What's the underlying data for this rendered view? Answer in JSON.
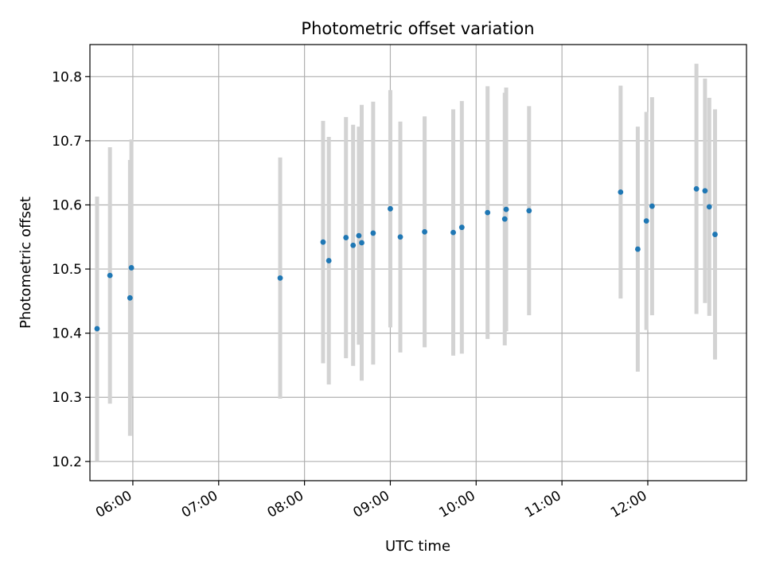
{
  "chart_data": {
    "type": "scatter",
    "title": "Photometric offset variation",
    "xlabel": "UTC time",
    "ylabel": "Photometric offset",
    "xlim": [
      "05:30",
      "13:09"
    ],
    "ylim": [
      10.17,
      10.85
    ],
    "x_ticks": [
      "06:00",
      "07:00",
      "08:00",
      "09:00",
      "10:00",
      "11:00",
      "12:00"
    ],
    "y_ticks": [
      "10.2",
      "10.3",
      "10.4",
      "10.5",
      "10.6",
      "10.7",
      "10.8"
    ],
    "grid": true,
    "colors": {
      "points": "#1f77b4",
      "error_bars": "#d3d3d3",
      "grid": "#b0b0b0"
    },
    "points": [
      {
        "x": "05:35",
        "y": 10.407,
        "err": 0.206
      },
      {
        "x": "05:44",
        "y": 10.49,
        "err": 0.2
      },
      {
        "x": "05:58",
        "y": 10.455,
        "err": 0.215
      },
      {
        "x": "05:59",
        "y": 10.502,
        "err": 0.2
      },
      {
        "x": "07:43",
        "y": 10.486,
        "err": 0.188
      },
      {
        "x": "08:13",
        "y": 10.542,
        "err": 0.189
      },
      {
        "x": "08:17",
        "y": 10.513,
        "err": 0.193
      },
      {
        "x": "08:29",
        "y": 10.549,
        "err": 0.188
      },
      {
        "x": "08:34",
        "y": 10.537,
        "err": 0.188
      },
      {
        "x": "08:38",
        "y": 10.552,
        "err": 0.17
      },
      {
        "x": "08:40",
        "y": 10.541,
        "err": 0.215
      },
      {
        "x": "08:48",
        "y": 10.556,
        "err": 0.205
      },
      {
        "x": "09:00",
        "y": 10.594,
        "err": 0.185
      },
      {
        "x": "09:07",
        "y": 10.55,
        "err": 0.18
      },
      {
        "x": "09:24",
        "y": 10.558,
        "err": 0.18
      },
      {
        "x": "09:44",
        "y": 10.557,
        "err": 0.192
      },
      {
        "x": "09:50",
        "y": 10.565,
        "err": 0.197
      },
      {
        "x": "10:08",
        "y": 10.588,
        "err": 0.197
      },
      {
        "x": "10:20",
        "y": 10.578,
        "err": 0.197
      },
      {
        "x": "10:21",
        "y": 10.593,
        "err": 0.19
      },
      {
        "x": "10:37",
        "y": 10.591,
        "err": 0.163
      },
      {
        "x": "11:41",
        "y": 10.62,
        "err": 0.166
      },
      {
        "x": "11:53",
        "y": 10.531,
        "err": 0.191
      },
      {
        "x": "11:59",
        "y": 10.575,
        "err": 0.17
      },
      {
        "x": "12:03",
        "y": 10.598,
        "err": 0.17
      },
      {
        "x": "12:34",
        "y": 10.625,
        "err": 0.195
      },
      {
        "x": "12:40",
        "y": 10.622,
        "err": 0.175
      },
      {
        "x": "12:43",
        "y": 10.597,
        "err": 0.17
      },
      {
        "x": "12:47",
        "y": 10.554,
        "err": 0.195
      }
    ]
  }
}
